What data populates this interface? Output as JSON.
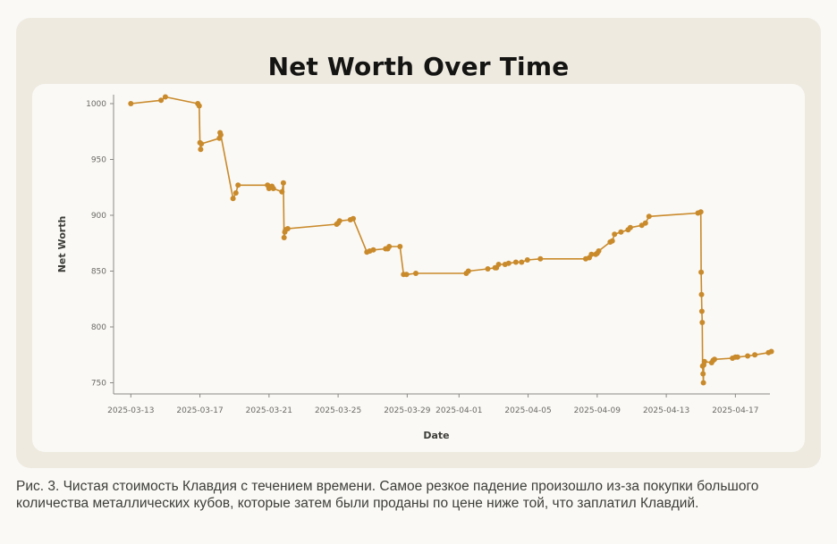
{
  "caption": "Рис. 3. Чистая стоимость Клавдия с течением времени. Самое резкое падение произошло из-за покупки большого количества металлических кубов, которые затем были проданы по цене ниже той, что заплатил Клавдий.",
  "chart_data": {
    "type": "line",
    "title": "Net Worth Over Time",
    "xlabel": "Date",
    "ylabel": "Net Worth",
    "xlim": [
      "2025-03-12",
      "2025-04-19"
    ],
    "ylim": [
      740,
      1008
    ],
    "yticks": [
      750,
      800,
      850,
      900,
      950,
      1000
    ],
    "xticks": [
      "2025-03-13",
      "2025-03-17",
      "2025-03-21",
      "2025-03-25",
      "2025-03-29",
      "2025-04-01",
      "2025-04-05",
      "2025-04-09",
      "2025-04-13",
      "2025-04-17"
    ],
    "grid": false,
    "legend": "none",
    "line_color": "#c98a2b",
    "series": [
      {
        "x": [
          "2025-03-13T00:00",
          "2025-03-14T18:00",
          "2025-03-15T00:00",
          "2025-03-16T21:00",
          "2025-03-16T23:00",
          "2025-03-17T00:00",
          "2025-03-17T01:00",
          "2025-03-17T02:00",
          "2025-03-18T03:00",
          "2025-03-18T04:00",
          "2025-03-18T05:00",
          "2025-03-18T22:00",
          "2025-03-19T02:00",
          "2025-03-19T05:00",
          "2025-03-20T22:00",
          "2025-03-21T00:00",
          "2025-03-21T04:00",
          "2025-03-21T06:00",
          "2025-03-21T18:00",
          "2025-03-21T20:00",
          "2025-03-21T21:00",
          "2025-03-21T22:00",
          "2025-03-21T23:00",
          "2025-03-22T02:00",
          "2025-03-24T22:00",
          "2025-03-25T00:00",
          "2025-03-25T02:00",
          "2025-03-25T17:00",
          "2025-03-25T21:00",
          "2025-03-26T16:00",
          "2025-03-26T20:00",
          "2025-03-27T01:00",
          "2025-03-27T18:00",
          "2025-03-27T21:00",
          "2025-03-27T23:00",
          "2025-03-28T14:00",
          "2025-03-28T19:00",
          "2025-03-28T23:00",
          "2025-03-29T12:00",
          "2025-04-01T10:00",
          "2025-04-01T13:00",
          "2025-04-02T16:00",
          "2025-04-03T02:00",
          "2025-04-03T04:00",
          "2025-04-03T07:00",
          "2025-04-03T16:00",
          "2025-04-03T21:00",
          "2025-04-04T07:00",
          "2025-04-04T15:00",
          "2025-04-04T23:00",
          "2025-04-05T17:00",
          "2025-04-08T08:00",
          "2025-04-08T13:00",
          "2025-04-08T16:00",
          "2025-04-08T22:00",
          "2025-04-09T00:00",
          "2025-04-09T02:00",
          "2025-04-09T18:00",
          "2025-04-09T21:00",
          "2025-04-10T00:00",
          "2025-04-10T09:00",
          "2025-04-10T19:00",
          "2025-04-10T22:00",
          "2025-04-11T14:00",
          "2025-04-11T19:00",
          "2025-04-12T00:00",
          "2025-04-14T20:00",
          "2025-04-15T00:00",
          "2025-04-15T00:30",
          "2025-04-15T01:00",
          "2025-04-15T01:30",
          "2025-04-15T02:00",
          "2025-04-15T02:30",
          "2025-04-15T03:00",
          "2025-04-15T03:30",
          "2025-04-15T04:00",
          "2025-04-15T05:00",
          "2025-04-15T15:00",
          "2025-04-15T17:00",
          "2025-04-15T19:00",
          "2025-04-16T20:00",
          "2025-04-17T00:00",
          "2025-04-17T03:00",
          "2025-04-17T17:00",
          "2025-04-18T03:00",
          "2025-04-18T22:00",
          "2025-04-19T02:00"
        ],
        "y": [
          1000,
          1003,
          1006,
          1000,
          998,
          965,
          959,
          964,
          969,
          974,
          972,
          915,
          920,
          927,
          927,
          924,
          926,
          924,
          921,
          929,
          880,
          885,
          887,
          888,
          892,
          893,
          895,
          896,
          897,
          867,
          868,
          869,
          870,
          870,
          872,
          872,
          847,
          847,
          848,
          848,
          850,
          852,
          853,
          853,
          856,
          856,
          857,
          858,
          858,
          860,
          861,
          861,
          862,
          865,
          865,
          866,
          868,
          876,
          877,
          883,
          885,
          887,
          889,
          891,
          893,
          899,
          902,
          903,
          849,
          829,
          814,
          804,
          765,
          758,
          750,
          766,
          769,
          768,
          770,
          771,
          772,
          773,
          773,
          774,
          775,
          777,
          778
        ]
      }
    ]
  }
}
